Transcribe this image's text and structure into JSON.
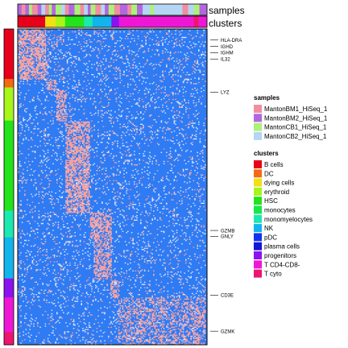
{
  "chart_data": {
    "type": "heatmap",
    "title": "",
    "colors": {
      "low": "#2f7bf4",
      "high": "#f4a0a0",
      "mid": "#ffffff",
      "border": "#000000"
    },
    "column_annotation_titles": [
      "samples",
      "clusters"
    ],
    "legends": [
      {
        "title": "samples",
        "entries": [
          {
            "label": "MantonBM1_HiSeq_1",
            "color": "#f08fa0"
          },
          {
            "label": "MantonBM2_HiSeq_1",
            "color": "#b266e0"
          },
          {
            "label": "MantonCB1_HiSeq_1",
            "color": "#aef07a"
          },
          {
            "label": "MantonCB2_HiSeq_1",
            "color": "#b4d6f4"
          }
        ]
      },
      {
        "title": "clusters",
        "entries": [
          {
            "label": "B cells",
            "color": "#e8001a"
          },
          {
            "label": "DC",
            "color": "#f46a12"
          },
          {
            "label": "dying cells",
            "color": "#f4e012"
          },
          {
            "label": "erythroid",
            "color": "#a6f51b"
          },
          {
            "label": "HSC",
            "color": "#23e31b"
          },
          {
            "label": "monocytes",
            "color": "#17e84a"
          },
          {
            "label": "monomyelocytes",
            "color": "#1ce8b2"
          },
          {
            "label": "NK",
            "color": "#11b4ec"
          },
          {
            "label": "pDC",
            "color": "#1034ee"
          },
          {
            "label": "plasma cells",
            "color": "#1515d6"
          },
          {
            "label": "progenitors",
            "color": "#8b13f0"
          },
          {
            "label": "T CD4-CD8-",
            "color": "#ee17d6"
          },
          {
            "label": "T cyto",
            "color": "#ee1570"
          }
        ]
      }
    ],
    "gene_labels": [
      {
        "label": "HLA-DRA",
        "row": 0.035
      },
      {
        "label": "IGHD",
        "row": 0.055
      },
      {
        "label": "IGHM",
        "row": 0.075
      },
      {
        "label": "IL32",
        "row": 0.095
      },
      {
        "label": "LYZ",
        "row": 0.2
      },
      {
        "label": "GZMB",
        "row": 0.638
      },
      {
        "label": "GNLY",
        "row": 0.657
      },
      {
        "label": "CD3E",
        "row": 0.843
      },
      {
        "label": "GZMK",
        "row": 0.957
      }
    ],
    "column_cluster_blocks": [
      {
        "cluster": "B cells",
        "from": 0.0,
        "to": 0.145
      },
      {
        "cluster": "dying cells",
        "from": 0.145,
        "to": 0.2
      },
      {
        "cluster": "erythroid",
        "from": 0.2,
        "to": 0.25
      },
      {
        "cluster": "HSC",
        "from": 0.25,
        "to": 0.35
      },
      {
        "cluster": "monomyelocytes",
        "from": 0.35,
        "to": 0.395
      },
      {
        "cluster": "NK",
        "from": 0.395,
        "to": 0.495
      },
      {
        "cluster": "progenitors",
        "from": 0.495,
        "to": 0.535
      },
      {
        "cluster": "T CD4-CD8-",
        "from": 0.535,
        "to": 0.93
      },
      {
        "cluster": "T cyto",
        "from": 0.93,
        "to": 0.955
      },
      {
        "cluster": "T CD4-CD8-",
        "from": 0.955,
        "to": 1.0
      }
    ],
    "row_cluster_blocks": [
      {
        "cluster": "B cells",
        "from": 0.0,
        "to": 0.158
      },
      {
        "cluster": "DC",
        "from": 0.158,
        "to": 0.185
      },
      {
        "cluster": "erythroid",
        "from": 0.185,
        "to": 0.29
      },
      {
        "cluster": "HSC",
        "from": 0.29,
        "to": 0.575
      },
      {
        "cluster": "monomyelocytes",
        "from": 0.575,
        "to": 0.66
      },
      {
        "cluster": "NK",
        "from": 0.66,
        "to": 0.79
      },
      {
        "cluster": "progenitors",
        "from": 0.79,
        "to": 0.85
      },
      {
        "cluster": "T CD4-CD8-",
        "from": 0.85,
        "to": 0.96
      },
      {
        "cluster": "T cyto",
        "from": 0.96,
        "to": 1.0
      }
    ],
    "column_sample_blocks": [
      {
        "sample": "MantonBM2_HiSeq_1",
        "from": 0.0,
        "to": 0.02
      },
      {
        "sample": "MantonBM1_HiSeq_1",
        "from": 0.02,
        "to": 0.04
      },
      {
        "sample": "MantonBM2_HiSeq_1",
        "from": 0.04,
        "to": 0.06
      },
      {
        "sample": "MantonCB1_HiSeq_1",
        "from": 0.06,
        "to": 0.075
      },
      {
        "sample": "MantonBM1_HiSeq_1",
        "from": 0.075,
        "to": 0.105
      },
      {
        "sample": "MantonBM2_HiSeq_1",
        "from": 0.105,
        "to": 0.125
      },
      {
        "sample": "MantonCB2_HiSeq_1",
        "from": 0.125,
        "to": 0.145
      },
      {
        "sample": "MantonBM1_HiSeq_1",
        "from": 0.145,
        "to": 0.165
      },
      {
        "sample": "MantonCB1_HiSeq_1",
        "from": 0.165,
        "to": 0.18
      },
      {
        "sample": "MantonBM2_HiSeq_1",
        "from": 0.18,
        "to": 0.2
      },
      {
        "sample": "MantonCB1_HiSeq_1",
        "from": 0.2,
        "to": 0.23
      },
      {
        "sample": "MantonCB2_HiSeq_1",
        "from": 0.23,
        "to": 0.25
      },
      {
        "sample": "MantonBM1_HiSeq_1",
        "from": 0.25,
        "to": 0.27
      },
      {
        "sample": "MantonBM2_HiSeq_1",
        "from": 0.27,
        "to": 0.3
      },
      {
        "sample": "MantonCB1_HiSeq_1",
        "from": 0.3,
        "to": 0.33
      },
      {
        "sample": "MantonBM1_HiSeq_1",
        "from": 0.33,
        "to": 0.35
      },
      {
        "sample": "MantonCB2_HiSeq_1",
        "from": 0.35,
        "to": 0.37
      },
      {
        "sample": "MantonBM2_HiSeq_1",
        "from": 0.37,
        "to": 0.385
      },
      {
        "sample": "MantonCB1_HiSeq_1",
        "from": 0.385,
        "to": 0.41
      },
      {
        "sample": "MantonBM1_HiSeq_1",
        "from": 0.41,
        "to": 0.44
      },
      {
        "sample": "MantonCB2_HiSeq_1",
        "from": 0.44,
        "to": 0.46
      },
      {
        "sample": "MantonBM2_HiSeq_1",
        "from": 0.46,
        "to": 0.48
      },
      {
        "sample": "MantonCB1_HiSeq_1",
        "from": 0.48,
        "to": 0.51
      },
      {
        "sample": "MantonBM1_HiSeq_1",
        "from": 0.51,
        "to": 0.54
      },
      {
        "sample": "MantonBM2_HiSeq_1",
        "from": 0.54,
        "to": 0.58
      },
      {
        "sample": "MantonBM1_HiSeq_1",
        "from": 0.58,
        "to": 0.6
      },
      {
        "sample": "MantonCB1_HiSeq_1",
        "from": 0.6,
        "to": 0.63
      },
      {
        "sample": "MantonBM2_HiSeq_1",
        "from": 0.63,
        "to": 0.66
      },
      {
        "sample": "MantonCB2_HiSeq_1",
        "from": 0.66,
        "to": 0.7
      },
      {
        "sample": "MantonCB1_HiSeq_1",
        "from": 0.7,
        "to": 0.72
      },
      {
        "sample": "MantonCB2_HiSeq_1",
        "from": 0.72,
        "to": 0.87
      },
      {
        "sample": "MantonBM1_HiSeq_1",
        "from": 0.87,
        "to": 0.9
      },
      {
        "sample": "MantonCB2_HiSeq_1",
        "from": 0.9,
        "to": 0.93
      },
      {
        "sample": "MantonCB1_HiSeq_1",
        "from": 0.93,
        "to": 0.96
      },
      {
        "sample": "MantonBM2_HiSeq_1",
        "from": 0.96,
        "to": 1.0
      }
    ],
    "high_expression_blocks": [
      {
        "rows": [
          0.0,
          0.16
        ],
        "cols": [
          0.0,
          0.145
        ],
        "density": 0.6
      },
      {
        "rows": [
          0.0,
          0.16
        ],
        "cols": [
          0.145,
          0.25
        ],
        "density": 0.12
      },
      {
        "rows": [
          0.0,
          0.16
        ],
        "cols": [
          0.25,
          1.0
        ],
        "density": 0.04
      },
      {
        "rows": [
          0.16,
          0.19
        ],
        "cols": [
          0.145,
          0.2
        ],
        "density": 0.55
      },
      {
        "rows": [
          0.19,
          0.29
        ],
        "cols": [
          0.2,
          0.255
        ],
        "density": 0.55
      },
      {
        "rows": [
          0.29,
          0.58
        ],
        "cols": [
          0.25,
          0.38
        ],
        "density": 0.55
      },
      {
        "rows": [
          0.58,
          0.66
        ],
        "cols": [
          0.38,
          0.5
        ],
        "density": 0.6
      },
      {
        "rows": [
          0.66,
          0.79
        ],
        "cols": [
          0.4,
          0.5
        ],
        "density": 0.5
      },
      {
        "rows": [
          0.79,
          0.85
        ],
        "cols": [
          0.49,
          0.54
        ],
        "density": 0.5
      },
      {
        "rows": [
          0.85,
          1.0
        ],
        "cols": [
          0.53,
          1.0
        ],
        "density": 0.35
      },
      {
        "rows": [
          0.96,
          1.0
        ],
        "cols": [
          0.93,
          0.96
        ],
        "density": 0.6
      }
    ],
    "background_density": 0.03
  }
}
